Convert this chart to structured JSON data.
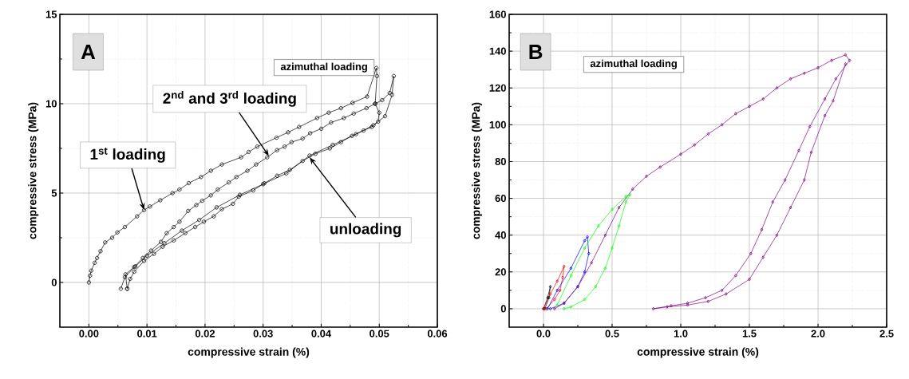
{
  "chart_data": [
    {
      "type": "line",
      "xlabel": "compressive strain (%)",
      "ylabel": "compressive stress (MPa)",
      "xlim": [
        -0.005,
        0.06
      ],
      "ylim": [
        -2.5,
        15
      ],
      "xticks": [
        {
          "value": 0,
          "label": "0.00"
        },
        {
          "value": 0.01,
          "label": "0.01"
        },
        {
          "value": 0.02,
          "label": "0.02"
        },
        {
          "value": 0.03,
          "label": "0.03"
        },
        {
          "value": 0.04,
          "label": "0.04"
        },
        {
          "value": 0.05,
          "label": "0.05"
        },
        {
          "value": 0.06,
          "label": "0.06"
        }
      ],
      "yticks": [
        0,
        5,
        10,
        15
      ],
      "grid": true,
      "marker": "circle",
      "annotations": [
        "A",
        "azimuthal loading",
        {
          "text": "2$^{nd}$ and 3$^{rd}$ loading",
          "x": 0.031,
          "y": 7.07
        },
        {
          "text": "1$^{st}$ loading",
          "x": 0.0095,
          "y": 4.05
        },
        {
          "text": "unloading",
          "x": 0.038,
          "y": 7.0
        }
      ],
      "series": [
        {
          "color": "#000000",
          "x": [
            0,
            0.0002,
            0.0004,
            0.001,
            0.0014,
            0.002,
            0.0028,
            0.004,
            0.0049,
            0.0062,
            0.0083,
            0.0095,
            0.0105,
            0.0123,
            0.0144,
            0.0156,
            0.0172,
            0.0193,
            0.021,
            0.0229,
            0.0262,
            0.0275,
            0.029,
            0.0323,
            0.0343,
            0.0362,
            0.0393,
            0.0413,
            0.0434,
            0.0454,
            0.0479,
            0.0495,
            0.0496,
            0.0493,
            0.05,
            0.0498,
            0.0487,
            0.0473,
            0.0453,
            0.0434,
            0.0415,
            0.039,
            0.0368,
            0.0346,
            0.0324,
            0.0302,
            0.0283,
            0.0258,
            0.0248,
            0.0229,
            0.0215,
            0.0198,
            0.0183,
            0.0166,
            0.0146,
            0.0127,
            0.0112,
            0.0095,
            0.0078,
            0.0071,
            0.0066
          ],
          "values": [
            0,
            0.38,
            0.66,
            1.1,
            1.37,
            1.75,
            2.24,
            2.5,
            2.8,
            3.1,
            3.7,
            4.05,
            4.25,
            4.6,
            5.0,
            5.2,
            5.56,
            5.9,
            6.25,
            6.6,
            7.0,
            7.3,
            7.6,
            8.1,
            8.4,
            8.7,
            9.2,
            9.5,
            9.75,
            10.05,
            10.4,
            12.0,
            11.55,
            10.0,
            9.5,
            9.0,
            8.7,
            8.5,
            8.2,
            7.85,
            7.5,
            7.2,
            6.8,
            6.3,
            5.97,
            5.55,
            5.15,
            4.8,
            4.4,
            4.1,
            3.7,
            3.4,
            3.1,
            2.76,
            2.35,
            2.0,
            1.6,
            1.2,
            0.6,
            0.2,
            -0.35
          ]
        },
        {
          "color": "#000000",
          "x": [
            0.0066,
            0.0063,
            0.0078,
            0.0093,
            0.0107,
            0.0124,
            0.0134,
            0.0146,
            0.0156,
            0.0171,
            0.0185,
            0.0195,
            0.021,
            0.0222,
            0.0241,
            0.0254,
            0.0273,
            0.0288,
            0.0307,
            0.0324,
            0.0337,
            0.0349,
            0.0368,
            0.0381,
            0.04,
            0.0417,
            0.0439,
            0.0456,
            0.0478,
            0.0493,
            0.0505,
            0.0518,
            0.0525,
            0.0522,
            0.051,
            0.049,
            0.046,
            0.042,
            0.038,
            0.034,
            0.03,
            0.026,
            0.022,
            0.019,
            0.016,
            0.013,
            0.01,
            0.008,
            0.0062,
            0.0055
          ],
          "values": [
            -0.35,
            0.45,
            0.87,
            1.37,
            1.78,
            2.27,
            2.76,
            3.1,
            3.4,
            4.0,
            4.33,
            4.57,
            4.87,
            5.2,
            5.6,
            5.9,
            6.25,
            6.6,
            7.0,
            7.4,
            7.6,
            7.85,
            8.05,
            8.35,
            8.6,
            8.95,
            9.2,
            9.45,
            9.75,
            10.0,
            10.2,
            10.6,
            11.55,
            10.5,
            9.3,
            8.8,
            8.3,
            7.7,
            7.1,
            6.1,
            5.5,
            4.9,
            4.2,
            3.5,
            2.9,
            2.2,
            1.5,
            0.9,
            0.3,
            -0.35
          ]
        }
      ]
    },
    {
      "type": "line",
      "xlabel": "compressive strain (%)",
      "ylabel": "compressive stress (MPa)",
      "xlim": [
        -0.25,
        2.5
      ],
      "ylim": [
        -10,
        160
      ],
      "xticks": [
        {
          "value": 0,
          "label": "0.0"
        },
        {
          "value": 0.5,
          "label": "0.5"
        },
        {
          "value": 1.0,
          "label": "1.0"
        },
        {
          "value": 1.5,
          "label": "1.5"
        },
        {
          "value": 2.0,
          "label": "2.0"
        },
        {
          "value": 2.5,
          "label": "2.5"
        }
      ],
      "yticks": [
        0,
        20,
        40,
        60,
        80,
        100,
        120,
        140,
        160
      ],
      "grid": true,
      "marker": "diamond",
      "annotations": [
        "B",
        "azimuthal loading"
      ],
      "series": [
        {
          "color": "#000000",
          "x": [
            0,
            0.03,
            0.05,
            0.04,
            0.01
          ],
          "values": [
            0,
            6,
            12,
            6,
            0
          ]
        },
        {
          "color": "#ff0000",
          "x": [
            0,
            0.05,
            0.1,
            0.15,
            0.14,
            0.12,
            0.08,
            0.02
          ],
          "values": [
            0,
            8,
            15,
            23,
            17,
            10,
            5,
            0
          ]
        },
        {
          "color": "#0000ff",
          "x": [
            0.03,
            0.1,
            0.2,
            0.3,
            0.32,
            0.33,
            0.3,
            0.25,
            0.15,
            0.05
          ],
          "values": [
            0,
            10,
            22,
            37,
            39,
            30,
            20,
            12,
            3,
            0
          ]
        },
        {
          "color": "#00ff00",
          "x": [
            0.1,
            0.2,
            0.3,
            0.4,
            0.5,
            0.6,
            0.63,
            0.6,
            0.55,
            0.5,
            0.45,
            0.38,
            0.3,
            0.2,
            0.15
          ],
          "values": [
            2,
            18,
            33,
            45,
            54,
            61,
            62,
            58,
            45,
            33,
            22,
            12,
            5,
            1,
            0
          ]
        },
        {
          "color": "#800080",
          "x": [
            0.08,
            0.15,
            0.25,
            0.35,
            0.45,
            0.55,
            0.65,
            0.75,
            0.85,
            1.0,
            1.1,
            1.2,
            1.3,
            1.4,
            1.5,
            1.6,
            1.7,
            1.8,
            1.9,
            2.0,
            2.1,
            2.2,
            2.23,
            2.13,
            2.05,
            1.94,
            1.86,
            1.76,
            1.67,
            1.59,
            1.51,
            1.4,
            1.3,
            1.18,
            1.05,
            0.93,
            0.8,
            0.9,
            1.05,
            1.2,
            1.33,
            1.5,
            1.6,
            1.7,
            1.8,
            1.9,
            1.95,
            2.05,
            2.11,
            2.2
          ],
          "values": [
            0,
            3,
            12,
            25,
            40,
            55,
            65,
            72,
            77,
            84,
            89,
            95,
            100,
            106,
            110,
            114,
            120,
            125,
            128,
            131,
            135,
            138,
            135,
            125,
            114,
            99,
            86,
            70,
            58,
            43,
            30,
            18,
            10,
            6,
            3,
            1.6,
            0,
            1,
            2,
            4,
            8,
            16,
            28,
            40,
            55,
            70,
            85,
            105,
            113,
            133
          ]
        }
      ]
    }
  ]
}
